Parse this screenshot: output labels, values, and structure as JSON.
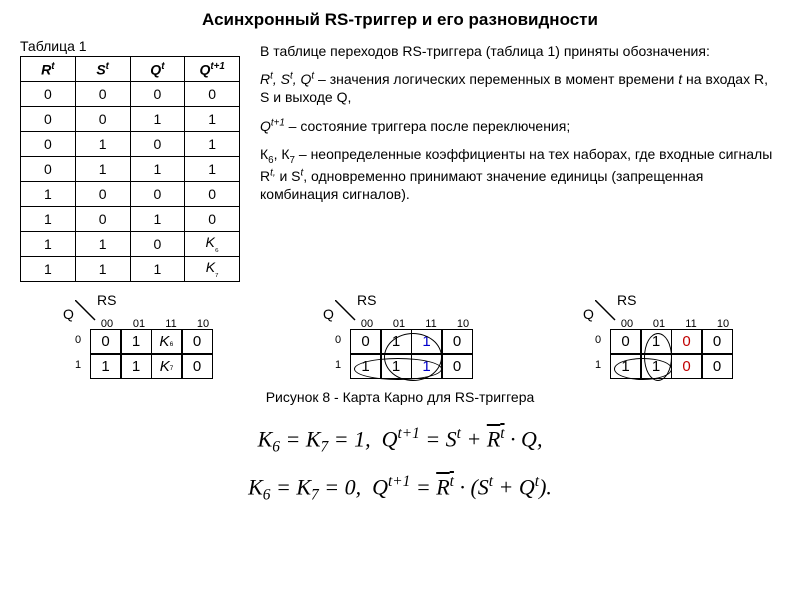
{
  "title": "Асинхронный RS-триггер и его разновидности",
  "table_caption": "Таблица 1",
  "truth_table": {
    "headers": [
      "R",
      "S",
      "Q",
      "Q"
    ],
    "header_sups": [
      "t",
      "t",
      "t",
      "t+1"
    ],
    "rows": [
      [
        "0",
        "0",
        "0",
        "0"
      ],
      [
        "0",
        "0",
        "1",
        "1"
      ],
      [
        "0",
        "1",
        "0",
        "1"
      ],
      [
        "0",
        "1",
        "1",
        "1"
      ],
      [
        "1",
        "0",
        "0",
        "0"
      ],
      [
        "1",
        "0",
        "1",
        "0"
      ],
      [
        "1",
        "1",
        "0",
        "K₆"
      ],
      [
        "1",
        "1",
        "1",
        "K₇"
      ]
    ]
  },
  "desc": {
    "p1_a": "В таблице переходов RS-триггера (таблица 1) приняты обозначения:",
    "p2_pre": "R",
    "p2_mid1": ", S",
    "p2_mid2": ", Q",
    "p2_tail": " – значения логических переменных в момент времени ",
    "p2_t": "t",
    "p2_tail2": " на входах R, S и выходе Q,",
    "p3_pre": "Q",
    "p3_tail": " – состояние триггера после переключения;",
    "p4_a": "К",
    "p4_b": ", К",
    "p4_tail1": " – неопределенные коэффициенты на тех наборах, где входные сигналы R",
    "p4_tail2": " и S",
    "p4_tail3": ", одновременно принимают значение единицы (запрещенная комбинация сигналов)."
  },
  "kmap": {
    "rs_label": "RS",
    "q_label": "Q",
    "col_headers": [
      "00",
      "01",
      "11",
      "10"
    ],
    "row_labels": [
      "0",
      "1"
    ],
    "map1": [
      [
        "0",
        "1",
        "K₆",
        "0"
      ],
      [
        "1",
        "1",
        "K₇",
        "0"
      ]
    ],
    "map2": [
      [
        "0",
        "1",
        "1",
        "0"
      ],
      [
        "1",
        "1",
        "1",
        "0"
      ]
    ],
    "map3": [
      [
        "0",
        "1",
        "0",
        "0"
      ],
      [
        "1",
        "1",
        "0",
        "0"
      ]
    ]
  },
  "fig_caption": "Рисунок 8 - Карта Карно для RS-триггера",
  "eq": {
    "k6": "K",
    "six": "6",
    "eq": " = ",
    "k7": "K",
    "seven": "7",
    "one": " 1,",
    "zero": " 0,",
    "Q": "Q",
    "tp1": "t+1",
    "S": "S",
    "t": "t",
    "plus": " + ",
    "R": "R",
    "dot": " · ",
    "comma": ",",
    "period": ".",
    "lp": "(",
    "rp": ")"
  }
}
